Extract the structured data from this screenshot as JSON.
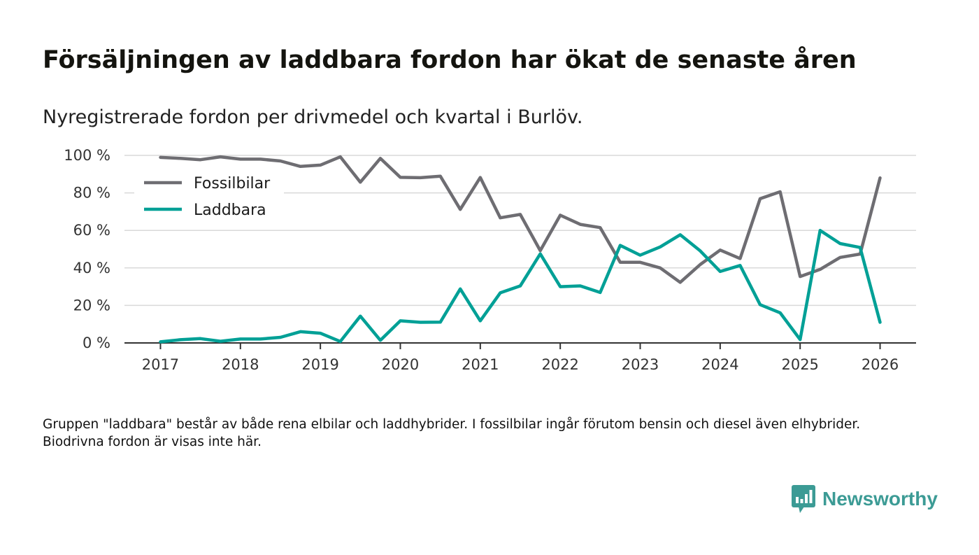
{
  "title": "Försäljningen av laddbara fordon har ökat de senaste åren",
  "subtitle": "Nyregistrerade fordon per drivmedel och kvartal i Burlöv.",
  "note": "Gruppen \"laddbara\" består av både rena elbilar och laddhybrider. I fossilbilar ingår förutom bensin och diesel även elhybrider. Biodrivna fordon är visas inte här.",
  "brand": {
    "name": "Newsworthy",
    "color": "#3c9b95"
  },
  "chart_data": {
    "type": "line",
    "x": [
      2017.0,
      2017.25,
      2017.5,
      2017.75,
      2018.0,
      2018.25,
      2018.5,
      2018.75,
      2019.0,
      2019.25,
      2019.5,
      2019.75,
      2020.0,
      2020.25,
      2020.5,
      2020.75,
      2021.0,
      2021.25,
      2021.5,
      2021.75,
      2022.0,
      2022.25,
      2022.5,
      2022.75,
      2023.0,
      2023.25,
      2023.5,
      2023.75,
      2024.0,
      2024.25,
      2024.5,
      2024.75,
      2025.0,
      2025.25,
      2025.5,
      2025.75,
      2026.0
    ],
    "series": [
      {
        "name": "Fossilbilar",
        "color": "#6e6d72",
        "values": [
          98.9,
          98.4,
          97.7,
          99.2,
          98.0,
          98.0,
          97.0,
          94.1,
          94.8,
          99.2,
          85.7,
          98.4,
          88.3,
          88.1,
          88.9,
          71.2,
          88.2,
          66.7,
          68.5,
          49.2,
          68.1,
          63.2,
          61.5,
          43.0,
          43.0,
          40.0,
          32.3,
          41.8,
          49.5,
          45.0,
          76.9,
          80.6,
          35.4,
          39.2,
          45.6,
          47.4,
          88.0
        ]
      },
      {
        "name": "Laddbara",
        "color": "#00a096",
        "values": [
          0.6,
          1.7,
          2.3,
          0.9,
          2.1,
          2.1,
          3.0,
          6.0,
          5.2,
          0.8,
          14.3,
          1.4,
          11.8,
          11.0,
          11.1,
          28.8,
          11.8,
          26.7,
          30.4,
          47.5,
          30.0,
          30.4,
          26.9,
          52.0,
          46.8,
          51.2,
          57.7,
          49.1,
          38.1,
          41.3,
          20.4,
          16.1,
          1.8,
          60.0,
          53.0,
          50.9,
          11.0
        ]
      }
    ],
    "xlabel": "",
    "ylabel": "",
    "xticks": [
      2017,
      2018,
      2019,
      2020,
      2021,
      2022,
      2023,
      2024,
      2025,
      2026
    ],
    "xtick_labels": [
      "2017",
      "2018",
      "2019",
      "2020",
      "2021",
      "2022",
      "2023",
      "2024",
      "2025",
      "2026"
    ],
    "yticks": [
      0,
      20,
      40,
      60,
      80,
      100
    ],
    "ytick_labels": [
      "0 %",
      "20 %",
      "40 %",
      "60 %",
      "80 %",
      "100 %"
    ],
    "ylim": [
      0,
      100
    ],
    "xlim": [
      2016.55,
      2026.45
    ],
    "grid": true,
    "legend": "top-left"
  }
}
